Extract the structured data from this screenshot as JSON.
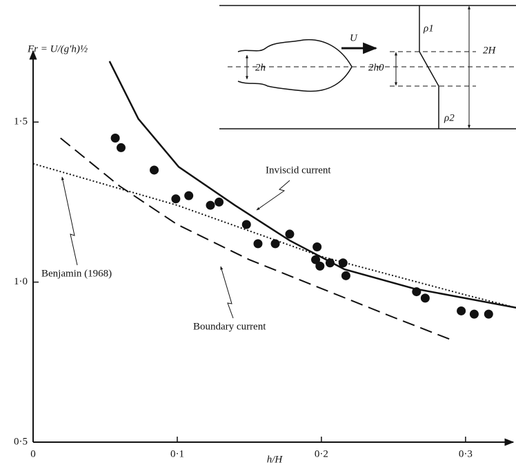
{
  "chart_data": {
    "type": "scatter",
    "xlabel": "h/H",
    "ylabel": "Fr = U/(g′h)½",
    "xlim": [
      0,
      0.335
    ],
    "ylim": [
      0.5,
      1.72
    ],
    "xticks": [
      0,
      {
        "value": 0.1,
        "label": "0·1"
      },
      {
        "value": 0.2,
        "label": "0·2"
      },
      {
        "value": 0.3,
        "label": "0·3"
      }
    ],
    "yticks": [
      {
        "value": 0.5,
        "label": "0·5"
      },
      {
        "value": 1.0,
        "label": "1·0"
      },
      {
        "value": 1.5,
        "label": "1·5"
      }
    ],
    "color": "#111111",
    "x": [
      0.057,
      0.061,
      0.084,
      0.099,
      0.108,
      0.123,
      0.129,
      0.148,
      0.156,
      0.168,
      0.178,
      0.197,
      0.196,
      0.199,
      0.206,
      0.215,
      0.217,
      0.266,
      0.272,
      0.297,
      0.306,
      0.316
    ],
    "values": [
      1.45,
      1.42,
      1.35,
      1.26,
      1.27,
      1.24,
      1.25,
      1.18,
      1.12,
      1.12,
      1.15,
      1.11,
      1.07,
      1.05,
      1.06,
      1.06,
      1.02,
      0.97,
      0.95,
      0.91,
      0.9,
      0.9
    ],
    "lines": [
      {
        "name": "Inviscid current",
        "style": "solid",
        "x": [
          0.053,
          0.073,
          0.101,
          0.14,
          0.178,
          0.216,
          0.264,
          0.335
        ],
        "values": [
          1.69,
          1.51,
          1.36,
          1.24,
          1.13,
          1.04,
          0.98,
          0.92
        ]
      },
      {
        "name": "Benjamin (1968)",
        "style": "dotted",
        "x": [
          0,
          0.1,
          0.2,
          0.3,
          0.335
        ],
        "values": [
          1.37,
          1.24,
          1.08,
          0.96,
          0.92
        ]
      },
      {
        "name": "Boundary current",
        "style": "dashed",
        "x": [
          0.019,
          0.06,
          0.1,
          0.15,
          0.2,
          0.25,
          0.29
        ],
        "values": [
          1.45,
          1.3,
          1.18,
          1.07,
          0.98,
          0.89,
          0.82
        ]
      }
    ],
    "inset": {
      "velocity": "U",
      "upper_density": "ρ1",
      "lower_density": "ρ2",
      "current_depth": "2h",
      "interface_depth": "2h0",
      "channel_depth": "2H"
    }
  }
}
